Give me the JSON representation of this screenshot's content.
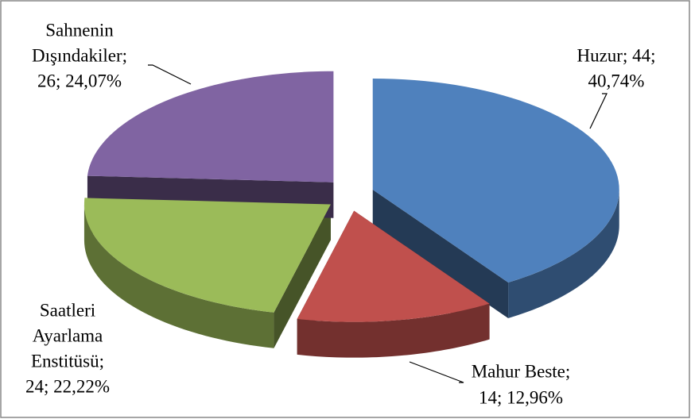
{
  "chart_data": {
    "type": "pie3d",
    "categories": [
      "Huzur",
      "Mahur Beste",
      "Saatleri Ayarlama Enstitüsü",
      "Sahnenin Dışındakiler"
    ],
    "values": [
      44,
      14,
      24,
      26
    ],
    "labels": [
      [
        "Huzur; 44;",
        "40,74%"
      ],
      [
        "Mahur Beste;",
        "14; 12,96%"
      ],
      [
        "Saatleri",
        "Ayarlama",
        "Enstitüsü;",
        "24; 22,22%"
      ],
      [
        "Sahnenin",
        "Dışındakiler;",
        "26; 24,07%"
      ]
    ],
    "colors": [
      "#4f81bd",
      "#c0504d",
      "#9bbb59",
      "#8064a2"
    ]
  }
}
